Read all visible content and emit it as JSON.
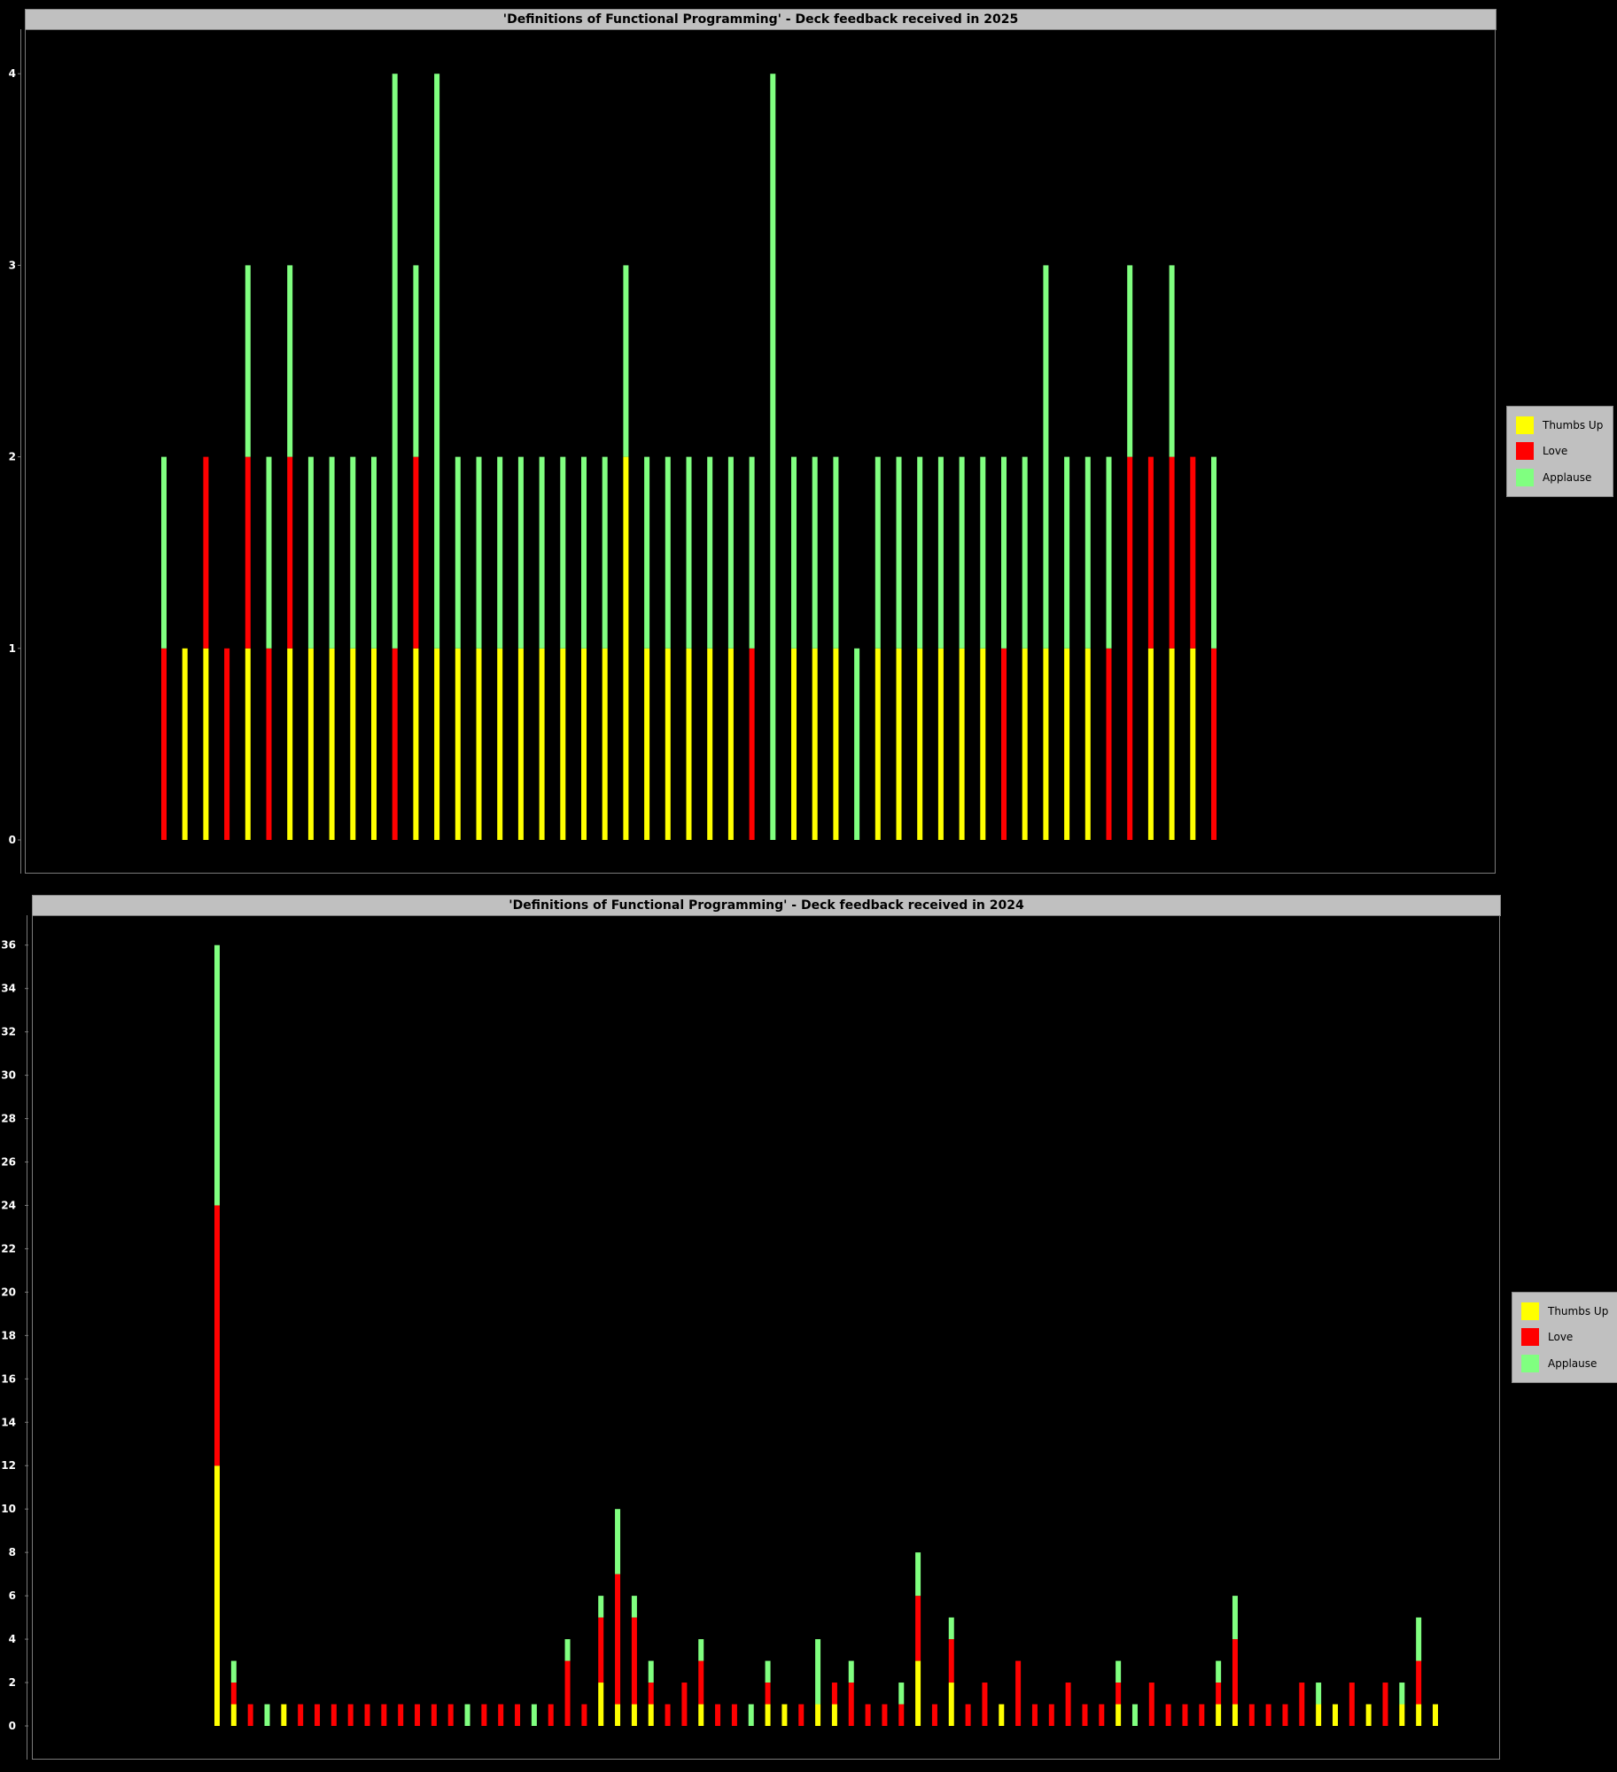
{
  "chart_data": [
    {
      "type": "bar",
      "stacked": true,
      "title": "'Definitions of Functional Programming' - Deck feedback received in 2025",
      "xlabel": "",
      "ylabel": "",
      "ylim": [
        0,
        4.2
      ],
      "yticks": [
        0,
        1,
        2,
        3,
        4
      ],
      "legend_position": "right",
      "grid": false,
      "series": [
        {
          "name": "Thumbs Up",
          "color": "#ffff00"
        },
        {
          "name": "Love",
          "color": "#ff0000"
        },
        {
          "name": "Applause",
          "color": "#80ff80"
        }
      ],
      "bars": [
        [
          0,
          1,
          1
        ],
        [
          1,
          0,
          0
        ],
        [
          1,
          1,
          0
        ],
        [
          0,
          1,
          0
        ],
        [
          1,
          1,
          1
        ],
        [
          0,
          1,
          1
        ],
        [
          1,
          1,
          1
        ],
        [
          1,
          0,
          1
        ],
        [
          1,
          0,
          1
        ],
        [
          1,
          0,
          1
        ],
        [
          1,
          0,
          1
        ],
        [
          0,
          1,
          3
        ],
        [
          1,
          1,
          1
        ],
        [
          1,
          0,
          3
        ],
        [
          1,
          0,
          1
        ],
        [
          1,
          0,
          1
        ],
        [
          1,
          0,
          1
        ],
        [
          1,
          0,
          1
        ],
        [
          1,
          0,
          1
        ],
        [
          1,
          0,
          1
        ],
        [
          1,
          0,
          1
        ],
        [
          1,
          0,
          1
        ],
        [
          2,
          0,
          1
        ],
        [
          1,
          0,
          1
        ],
        [
          1,
          0,
          1
        ],
        [
          1,
          0,
          1
        ],
        [
          1,
          0,
          1
        ],
        [
          1,
          0,
          1
        ],
        [
          0,
          1,
          1
        ],
        [
          0,
          0,
          4
        ],
        [
          1,
          0,
          1
        ],
        [
          1,
          0,
          1
        ],
        [
          1,
          0,
          1
        ],
        [
          0,
          0,
          1
        ],
        [
          1,
          0,
          1
        ],
        [
          1,
          0,
          1
        ],
        [
          1,
          0,
          1
        ],
        [
          1,
          0,
          1
        ],
        [
          1,
          0,
          1
        ],
        [
          1,
          0,
          1
        ],
        [
          0,
          1,
          1
        ],
        [
          1,
          0,
          1
        ],
        [
          1,
          0,
          2
        ],
        [
          1,
          0,
          1
        ],
        [
          1,
          0,
          1
        ],
        [
          0,
          1,
          1
        ],
        [
          0,
          2,
          1
        ],
        [
          1,
          1,
          0
        ],
        [
          1,
          1,
          1
        ],
        [
          1,
          1,
          0
        ],
        [
          0,
          1,
          1
        ]
      ]
    },
    {
      "type": "bar",
      "stacked": true,
      "title": "'Definitions of Functional Programming' - Deck feedback received in 2024",
      "xlabel": "",
      "ylabel": "",
      "ylim": [
        0,
        37.5
      ],
      "yticks": [
        0,
        2,
        4,
        6,
        8,
        10,
        12,
        14,
        16,
        18,
        20,
        22,
        24,
        26,
        28,
        30,
        32,
        34,
        36
      ],
      "legend_position": "right",
      "grid": false,
      "series": [
        {
          "name": "Thumbs Up",
          "color": "#ffff00"
        },
        {
          "name": "Love",
          "color": "#ff0000"
        },
        {
          "name": "Applause",
          "color": "#80ff80"
        }
      ],
      "bars": [
        [
          12,
          12,
          12
        ],
        [
          1,
          1,
          1
        ],
        [
          0,
          1,
          0
        ],
        [
          0,
          0,
          1
        ],
        [
          1,
          0,
          0
        ],
        [
          0,
          1,
          0
        ],
        [
          0,
          1,
          0
        ],
        [
          0,
          1,
          0
        ],
        [
          0,
          1,
          0
        ],
        [
          0,
          1,
          0
        ],
        [
          0,
          1,
          0
        ],
        [
          0,
          1,
          0
        ],
        [
          0,
          1,
          0
        ],
        [
          0,
          1,
          0
        ],
        [
          0,
          1,
          0
        ],
        [
          0,
          0,
          1
        ],
        [
          0,
          1,
          0
        ],
        [
          0,
          1,
          0
        ],
        [
          0,
          1,
          0
        ],
        [
          0,
          0,
          1
        ],
        [
          0,
          1,
          0
        ],
        [
          0,
          3,
          1
        ],
        [
          0,
          1,
          0
        ],
        [
          2,
          3,
          1
        ],
        [
          1,
          6,
          3
        ],
        [
          1,
          4,
          1
        ],
        [
          1,
          1,
          1
        ],
        [
          0,
          1,
          0
        ],
        [
          0,
          2,
          0
        ],
        [
          1,
          2,
          1
        ],
        [
          0,
          1,
          0
        ],
        [
          0,
          1,
          0
        ],
        [
          0,
          0,
          1
        ],
        [
          1,
          1,
          1
        ],
        [
          1,
          0,
          0
        ],
        [
          0,
          1,
          0
        ],
        [
          1,
          0,
          3
        ],
        [
          1,
          1,
          0
        ],
        [
          0,
          2,
          1
        ],
        [
          0,
          1,
          0
        ],
        [
          0,
          1,
          0
        ],
        [
          0,
          1,
          1
        ],
        [
          3,
          3,
          2
        ],
        [
          0,
          1,
          0
        ],
        [
          2,
          2,
          1
        ],
        [
          0,
          1,
          0
        ],
        [
          0,
          2,
          0
        ],
        [
          1,
          0,
          0
        ],
        [
          0,
          3,
          0
        ],
        [
          0,
          1,
          0
        ],
        [
          0,
          1,
          0
        ],
        [
          0,
          2,
          0
        ],
        [
          0,
          1,
          0
        ],
        [
          0,
          1,
          0
        ],
        [
          1,
          1,
          1
        ],
        [
          0,
          0,
          1
        ],
        [
          0,
          2,
          0
        ],
        [
          0,
          1,
          0
        ],
        [
          0,
          1,
          0
        ],
        [
          0,
          1,
          0
        ],
        [
          1,
          1,
          1
        ],
        [
          1,
          3,
          2
        ],
        [
          0,
          1,
          0
        ],
        [
          0,
          1,
          0
        ],
        [
          0,
          1,
          0
        ],
        [
          0,
          2,
          0
        ],
        [
          1,
          0,
          1
        ],
        [
          1,
          0,
          0
        ],
        [
          0,
          2,
          0
        ],
        [
          1,
          0,
          0
        ],
        [
          0,
          2,
          0
        ],
        [
          1,
          0,
          1
        ],
        [
          1,
          2,
          2
        ],
        [
          1,
          0,
          0
        ]
      ]
    }
  ]
}
